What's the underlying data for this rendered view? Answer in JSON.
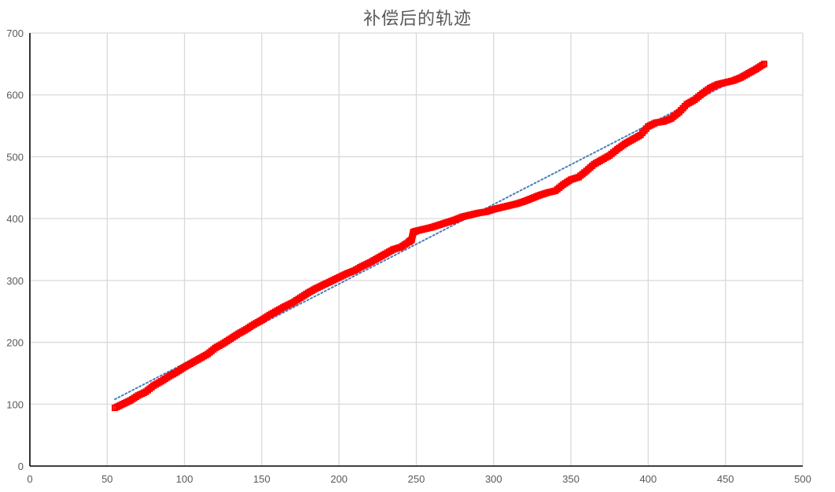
{
  "chart_data": {
    "type": "scatter",
    "title": "补偿后的轨迹",
    "xlabel": "",
    "ylabel": "",
    "xlim": [
      0,
      500
    ],
    "ylim": [
      0,
      700
    ],
    "xticks": [
      0,
      50,
      100,
      150,
      200,
      250,
      300,
      350,
      400,
      450,
      500
    ],
    "yticks": [
      0,
      100,
      200,
      300,
      400,
      500,
      600,
      700
    ],
    "grid": true,
    "legend": "none",
    "series": [
      {
        "marker_color": "#ff0000",
        "marker": "square",
        "points": [
          [
            55,
            94
          ],
          [
            60,
            100
          ],
          [
            65,
            106
          ],
          [
            70,
            114
          ],
          [
            75,
            120
          ],
          [
            80,
            130
          ],
          [
            85,
            137
          ],
          [
            90,
            145
          ],
          [
            95,
            152
          ],
          [
            100,
            160
          ],
          [
            105,
            167
          ],
          [
            110,
            174
          ],
          [
            115,
            181
          ],
          [
            120,
            191
          ],
          [
            125,
            198
          ],
          [
            130,
            206
          ],
          [
            135,
            214
          ],
          [
            140,
            221
          ],
          [
            145,
            229
          ],
          [
            150,
            236
          ],
          [
            155,
            244
          ],
          [
            160,
            251
          ],
          [
            165,
            258
          ],
          [
            170,
            264
          ],
          [
            175,
            272
          ],
          [
            180,
            280
          ],
          [
            185,
            287
          ],
          [
            190,
            293
          ],
          [
            195,
            299
          ],
          [
            200,
            305
          ],
          [
            205,
            311
          ],
          [
            210,
            316
          ],
          [
            215,
            323
          ],
          [
            220,
            329
          ],
          [
            225,
            336
          ],
          [
            230,
            343
          ],
          [
            235,
            350
          ],
          [
            240,
            354
          ],
          [
            245,
            362
          ],
          [
            247,
            366
          ],
          [
            248,
            378
          ],
          [
            250,
            380
          ],
          [
            255,
            383
          ],
          [
            260,
            386
          ],
          [
            265,
            390
          ],
          [
            270,
            394
          ],
          [
            275,
            398
          ],
          [
            280,
            403
          ],
          [
            285,
            406
          ],
          [
            290,
            409
          ],
          [
            295,
            411
          ],
          [
            300,
            415
          ],
          [
            305,
            418
          ],
          [
            310,
            421
          ],
          [
            315,
            424
          ],
          [
            320,
            428
          ],
          [
            325,
            433
          ],
          [
            330,
            438
          ],
          [
            335,
            442
          ],
          [
            340,
            445
          ],
          [
            345,
            455
          ],
          [
            350,
            463
          ],
          [
            355,
            467
          ],
          [
            360,
            477
          ],
          [
            365,
            488
          ],
          [
            370,
            495
          ],
          [
            375,
            502
          ],
          [
            380,
            512
          ],
          [
            385,
            521
          ],
          [
            390,
            528
          ],
          [
            395,
            535
          ],
          [
            400,
            549
          ],
          [
            405,
            555
          ],
          [
            410,
            557
          ],
          [
            415,
            562
          ],
          [
            420,
            572
          ],
          [
            425,
            585
          ],
          [
            430,
            592
          ],
          [
            435,
            602
          ],
          [
            440,
            611
          ],
          [
            445,
            617
          ],
          [
            450,
            620
          ],
          [
            455,
            623
          ],
          [
            460,
            628
          ],
          [
            465,
            635
          ],
          [
            470,
            642
          ],
          [
            475,
            650
          ]
        ]
      }
    ],
    "trendline": {
      "style": "dotted",
      "color": "#4a7ebb",
      "from": [
        55,
        108
      ],
      "to": [
        475,
        648
      ]
    }
  }
}
